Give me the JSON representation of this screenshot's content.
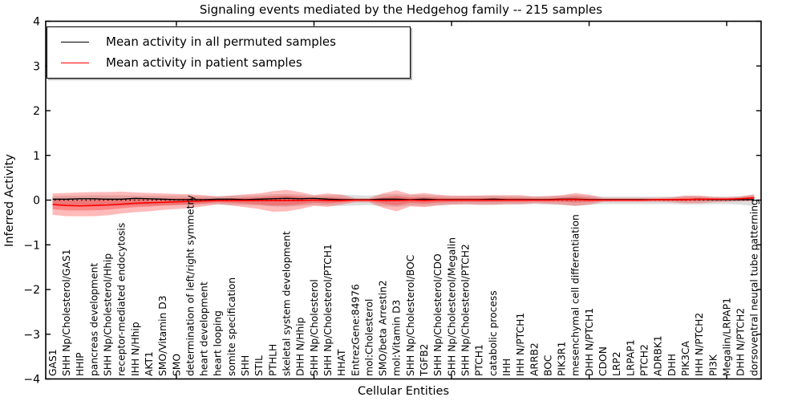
{
  "figure": {
    "title": "Signaling events mediated by the Hedgehog family -- 215 samples",
    "xlabel": "Cellular Entities",
    "ylabel": "Inferred Activity"
  },
  "legend": {
    "entries": [
      {
        "label": "Mean activity in all permuted samples",
        "color": "#000000"
      },
      {
        "label": "Mean activity in patient samples",
        "color": "#ff0000"
      }
    ]
  },
  "chart_data": {
    "type": "line",
    "title": "Signaling events mediated by the Hedgehog family -- 215 samples",
    "xlabel": "Cellular Entities",
    "ylabel": "Inferred Activity",
    "ylim": [
      -4,
      4
    ],
    "yticks": [
      4,
      3,
      2,
      1,
      0,
      -1,
      -2,
      -3,
      -4
    ],
    "ytick_labels": [
      "4",
      "3",
      "2",
      "1",
      "0",
      "−1",
      "−2",
      "−3",
      "−4"
    ],
    "xticks_data": [
      10,
      20,
      30,
      40,
      50
    ],
    "grid": false,
    "legend_position": "upper left",
    "zero_line": {
      "y": 0,
      "style": "dotted",
      "color": "#000000"
    },
    "categories": [
      "GAS1",
      "SHH Np/Cholesterol/GAS1",
      "HHIP",
      "pancreas development",
      "SHH Np/Cholesterol/Hhip",
      "receptor-mediated endocytosis",
      "IHH N/Hhip",
      "AKT1",
      "SMO/Vitamin D3",
      "SMO",
      "determination of left/right symmetry",
      "heart development",
      "heart looping",
      "somite specification",
      "SHH",
      "STIL",
      "PTHLH",
      "skeletal system development",
      "DHH N/Hhip",
      "SHH Np/Cholesterol",
      "SHH Np/Cholesterol/PTCH1",
      "HHAT",
      "EntrezGene:84976",
      "mol:Cholesterol",
      "SMO/beta Arrestin2",
      "mol:Vitamin D3",
      "SHH Np/Cholesterol/BOC",
      "TGFB2",
      "SHH Np/Cholesterol/CDO",
      "SHH Np/Cholesterol/Megalin",
      "SHH Np/Cholesterol/PTCH2",
      "PTCH1",
      "catabolic process",
      "IHH",
      "IHH N/PTCH1",
      "ARRB2",
      "BOC",
      "PIK3R1",
      "mesenchymal cell differentiation",
      "DHH N/PTCH1",
      "CDON",
      "LRP2",
      "LRPAP1",
      "PTCH2",
      "ADRBK1",
      "DHH",
      "PIK3CA",
      "IHH N/PTCH2",
      "PI3K",
      "Megalin/LRPAP1",
      "DHH N/PTCH2",
      "dorsoventral neural tube patterning"
    ],
    "series": [
      {
        "name": "Mean activity in all permuted samples",
        "color": "#000000",
        "values": [
          0.02,
          0.02,
          0.03,
          0.03,
          0.02,
          0.02,
          0.04,
          0.03,
          0.02,
          0.01,
          0.01,
          0.01,
          0.02,
          0.02,
          0.01,
          0.02,
          0.03,
          0.04,
          0.03,
          0.04,
          0.02,
          0.01,
          0.01,
          0.01,
          0.02,
          0.02,
          0.01,
          0.02,
          0.01,
          0.01,
          0.01,
          0.01,
          0.02,
          0.01,
          0.01,
          0.01,
          0.01,
          0.02,
          0.02,
          0.01,
          0.01,
          0.01,
          0.01,
          0.01,
          0.01,
          0.01,
          0.01,
          0.02,
          0.01,
          0.01,
          0.01,
          0.01
        ]
      },
      {
        "name": "Mean activity in patient samples",
        "color": "#ff0000",
        "values": [
          -0.1,
          -0.12,
          -0.13,
          -0.12,
          -0.11,
          -0.09,
          -0.07,
          -0.06,
          -0.05,
          -0.04,
          -0.03,
          -0.02,
          -0.01,
          -0.01,
          -0.01,
          -0.01,
          -0.01,
          -0.01,
          -0.01,
          0,
          -0.01,
          -0.01,
          0,
          0,
          -0.01,
          -0.01,
          0,
          -0.01,
          0,
          0,
          0,
          0,
          0,
          0,
          0,
          0,
          0,
          0.01,
          0.01,
          0,
          0,
          0,
          0,
          0,
          0.01,
          0.01,
          0.01,
          0.02,
          0.02,
          0.02,
          0.03,
          0.05
        ]
      }
    ],
    "bands": [
      {
        "name": "permuted std band",
        "color": "#000000",
        "opacity": 0.13,
        "upper": [
          0.09,
          0.1,
          0.1,
          0.11,
          0.11,
          0.11,
          0.1,
          0.1,
          0.1,
          0.1,
          0.1,
          0.09,
          0.09,
          0.1,
          0.1,
          0.11,
          0.13,
          0.14,
          0.12,
          0.1,
          0.11,
          0.12,
          0.11,
          0.1,
          0.13,
          0.14,
          0.11,
          0.12,
          0.1,
          0.09,
          0.09,
          0.1,
          0.1,
          0.09,
          0.09,
          0.08,
          0.09,
          0.1,
          0.12,
          0.1,
          0.08,
          0.08,
          0.08,
          0.08,
          0.08,
          0.08,
          0.09,
          0.09,
          0.08,
          0.08,
          0.09,
          0.12
        ],
        "lower": [
          -0.11,
          -0.12,
          -0.12,
          -0.13,
          -0.13,
          -0.13,
          -0.12,
          -0.12,
          -0.11,
          -0.11,
          -0.11,
          -0.1,
          -0.1,
          -0.11,
          -0.11,
          -0.12,
          -0.14,
          -0.15,
          -0.13,
          -0.11,
          -0.12,
          -0.13,
          -0.12,
          -0.11,
          -0.14,
          -0.15,
          -0.12,
          -0.13,
          -0.11,
          -0.1,
          -0.1,
          -0.11,
          -0.11,
          -0.1,
          -0.1,
          -0.09,
          -0.1,
          -0.11,
          -0.13,
          -0.11,
          -0.09,
          -0.09,
          -0.09,
          -0.09,
          -0.09,
          -0.09,
          -0.1,
          -0.1,
          -0.09,
          -0.09,
          -0.1,
          -0.13
        ]
      },
      {
        "name": "patient std band",
        "color": "#ff0000",
        "opacity": 0.27,
        "upper": [
          0.15,
          0.16,
          0.17,
          0.18,
          0.18,
          0.19,
          0.17,
          0.16,
          0.15,
          0.14,
          0.13,
          0.11,
          0.08,
          0.1,
          0.13,
          0.15,
          0.2,
          0.23,
          0.18,
          0.11,
          0.15,
          0.12,
          0.04,
          0.04,
          0.15,
          0.22,
          0.13,
          0.16,
          0.12,
          0.1,
          0.1,
          0.1,
          0.11,
          0.11,
          0.11,
          0.08,
          0.09,
          0.11,
          0.16,
          0.12,
          0.05,
          0.05,
          0.05,
          0.05,
          0.05,
          0.06,
          0.1,
          0.1,
          0.07,
          0.06,
          0.08,
          0.13
        ],
        "lower": [
          -0.33,
          -0.36,
          -0.36,
          -0.36,
          -0.34,
          -0.3,
          -0.27,
          -0.25,
          -0.22,
          -0.2,
          -0.18,
          -0.14,
          -0.09,
          -0.12,
          -0.16,
          -0.2,
          -0.26,
          -0.25,
          -0.2,
          -0.13,
          -0.15,
          -0.1,
          -0.05,
          -0.05,
          -0.17,
          -0.25,
          -0.14,
          -0.16,
          -0.12,
          -0.1,
          -0.09,
          -0.1,
          -0.1,
          -0.09,
          -0.09,
          -0.07,
          -0.08,
          -0.1,
          -0.13,
          -0.1,
          -0.04,
          -0.04,
          -0.04,
          -0.04,
          -0.04,
          -0.05,
          -0.07,
          -0.07,
          -0.05,
          -0.04,
          -0.03,
          -0.02
        ]
      }
    ]
  },
  "colors": {
    "patient": "#ff0000",
    "permuted": "#000000",
    "frame": "#000000",
    "background": "#ffffff"
  }
}
